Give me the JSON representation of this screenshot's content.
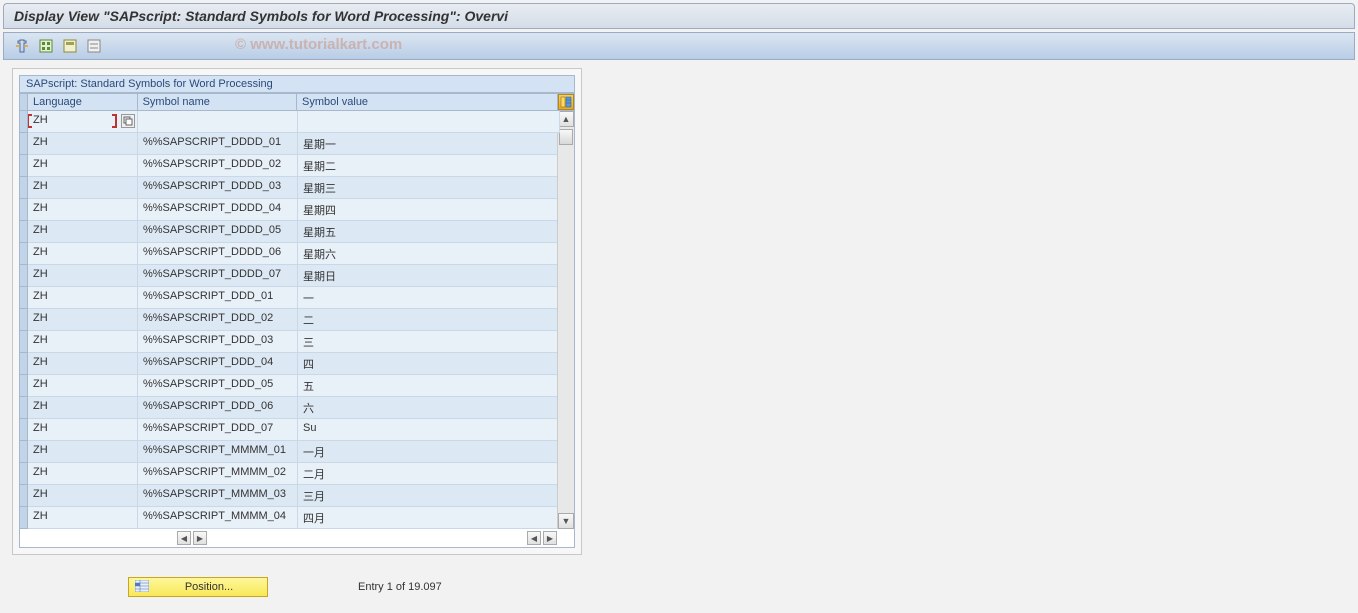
{
  "title": "Display View \"SAPscript: Standard Symbols for Word Processing\": Overvi",
  "watermark": "© www.tutorialkart.com",
  "panel_title": "SAPscript: Standard Symbols for Word Processing",
  "columns": {
    "language": "Language",
    "symbol_name": "Symbol name",
    "symbol_value": "Symbol value"
  },
  "rows": [
    {
      "lang": "ZH",
      "name": "",
      "value": ""
    },
    {
      "lang": "ZH",
      "name": "%%SAPSCRIPT_DDDD_01",
      "value": "星期一"
    },
    {
      "lang": "ZH",
      "name": "%%SAPSCRIPT_DDDD_02",
      "value": "星期二"
    },
    {
      "lang": "ZH",
      "name": "%%SAPSCRIPT_DDDD_03",
      "value": "星期三"
    },
    {
      "lang": "ZH",
      "name": "%%SAPSCRIPT_DDDD_04",
      "value": "星期四"
    },
    {
      "lang": "ZH",
      "name": "%%SAPSCRIPT_DDDD_05",
      "value": "星期五"
    },
    {
      "lang": "ZH",
      "name": "%%SAPSCRIPT_DDDD_06",
      "value": "星期六"
    },
    {
      "lang": "ZH",
      "name": "%%SAPSCRIPT_DDDD_07",
      "value": "星期日"
    },
    {
      "lang": "ZH",
      "name": "%%SAPSCRIPT_DDD_01",
      "value": "一"
    },
    {
      "lang": "ZH",
      "name": "%%SAPSCRIPT_DDD_02",
      "value": "二"
    },
    {
      "lang": "ZH",
      "name": "%%SAPSCRIPT_DDD_03",
      "value": "三"
    },
    {
      "lang": "ZH",
      "name": "%%SAPSCRIPT_DDD_04",
      "value": "四"
    },
    {
      "lang": "ZH",
      "name": "%%SAPSCRIPT_DDD_05",
      "value": "五"
    },
    {
      "lang": "ZH",
      "name": "%%SAPSCRIPT_DDD_06",
      "value": "六"
    },
    {
      "lang": "ZH",
      "name": "%%SAPSCRIPT_DDD_07",
      "value": "Su"
    },
    {
      "lang": "ZH",
      "name": "%%SAPSCRIPT_MMMM_01",
      "value": "一月"
    },
    {
      "lang": "ZH",
      "name": "%%SAPSCRIPT_MMMM_02",
      "value": "二月"
    },
    {
      "lang": "ZH",
      "name": "%%SAPSCRIPT_MMMM_03",
      "value": "三月"
    },
    {
      "lang": "ZH",
      "name": "%%SAPSCRIPT_MMMM_04",
      "value": "四月"
    }
  ],
  "position_button": "Position...",
  "entry_status": "Entry 1 of 19.097",
  "colors": {
    "title_bg_start": "#e8ecf2",
    "title_bg_end": "#d4dde8",
    "toolbar_bg_start": "#dbe5f1",
    "toolbar_bg_end": "#b8cde6",
    "panel_header": "#d4e3f3",
    "row_odd": "#e8f0f8",
    "row_even": "#dce8f4",
    "position_btn_start": "#fef79a",
    "position_btn_end": "#f8e858",
    "config_btn": "#e8a82a"
  }
}
